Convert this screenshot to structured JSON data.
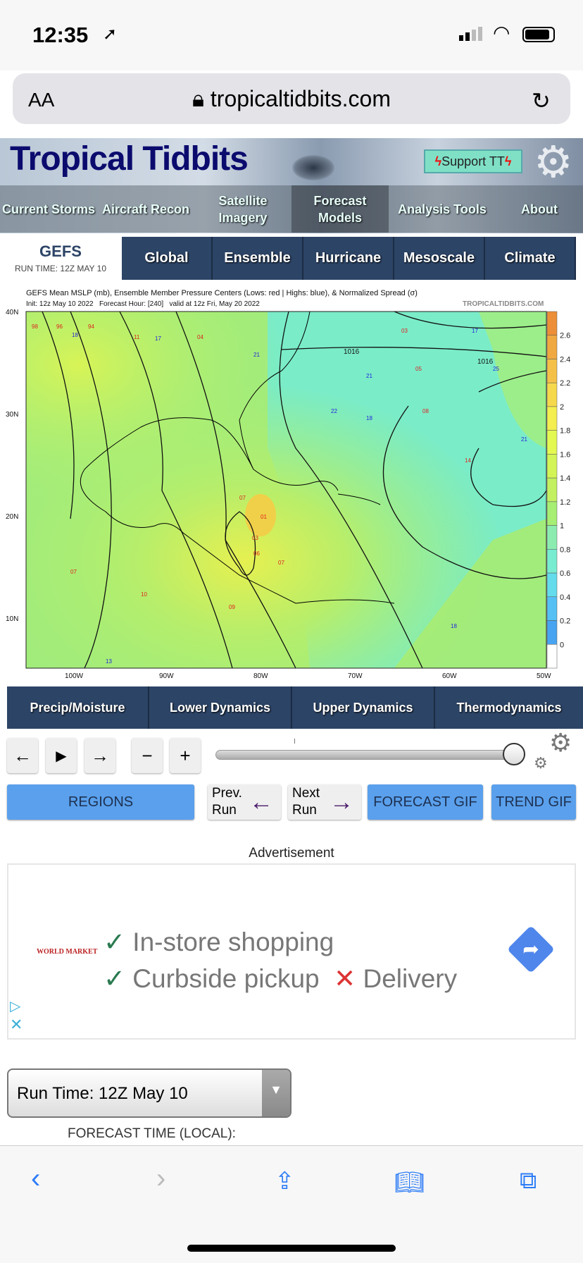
{
  "status_bar": {
    "time": "12:35"
  },
  "browser": {
    "text_size": "AA",
    "url": "tropicaltidbits.com"
  },
  "site": {
    "logo": "Tropical Tidbits",
    "support": "Support TT",
    "nav": [
      "Current Storms",
      "Aircraft Recon",
      "Satellite Imagery",
      "Forecast Models",
      "Analysis Tools",
      "About"
    ],
    "active_nav": "Forecast Models"
  },
  "model": {
    "name": "GEFS",
    "run_time": "RUN TIME: 12Z MAY 10"
  },
  "model_tabs": [
    "Global",
    "Ensemble",
    "Hurricane",
    "Mesoscale",
    "Climate"
  ],
  "map": {
    "title": "GEFS Mean MSLP (mb), Ensemble Member Pressure Centers (Lows: red | Highs: blue), & Normalized Spread (σ)",
    "init": "Init: 12z May 10 2022   Forecast Hour: [240]   valid at 12z Fri, May 20 2022",
    "brand": "TROPICALTIDBITS.COM",
    "lat_labels": [
      "40N",
      "30N",
      "20N",
      "10N"
    ],
    "lon_labels": [
      "100W",
      "90W",
      "80W",
      "70W",
      "60W",
      "50W"
    ],
    "colorbar": [
      "2.6",
      "2.4",
      "2.2",
      "2",
      "1.8",
      "1.6",
      "1.4",
      "1.2",
      "1",
      "0.8",
      "0.6",
      "0.4",
      "0.2",
      "0"
    ],
    "colorbar_colors": [
      "#ec8f38",
      "#f0a840",
      "#f4c048",
      "#f6d84c",
      "#f4ee50",
      "#e4f852",
      "#d2f456",
      "#c2f060",
      "#a6ee74",
      "#8cecb0",
      "#78ecd0",
      "#64dcec",
      "#54c0f4",
      "#48a4f0",
      "#ffffff"
    ],
    "isobar_labels": [
      "1016",
      "1016"
    ]
  },
  "category_tabs": [
    "Precip/Moisture",
    "Lower Dynamics",
    "Upper Dynamics",
    "Thermodynamics"
  ],
  "controls": {
    "prev": "←",
    "play": "▶",
    "next": "→",
    "minus": "−",
    "plus": "+",
    "slider_value": 1.0
  },
  "buttons": {
    "regions": "REGIONS",
    "prev_run_1": "Prev.",
    "prev_run_2": "Run",
    "next_run_1": "Next",
    "next_run_2": "Run",
    "forecast_gif": "FORECAST GIF",
    "trend_gif": "TREND GIF"
  },
  "ad": {
    "label": "Advertisement",
    "brand": "WORLD MARKET",
    "line1": "In-store shopping",
    "line2": "Curbside pickup",
    "line3": "Delivery"
  },
  "run_select": {
    "value": "Run Time: 12Z May 10"
  },
  "forecast_time_label": "FORECAST TIME (LOCAL):"
}
